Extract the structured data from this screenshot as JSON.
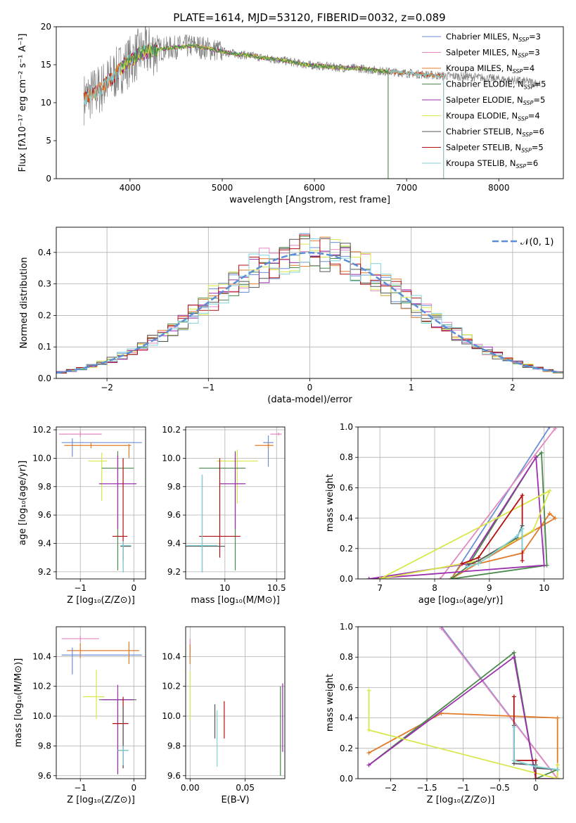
{
  "figure_title": "PLATE=1614, MJD=53120, FIBERID=0032, z=0.089",
  "colors": {
    "Chabrier MILES": "#6b8fd6",
    "Salpeter MILES": "#e688c0",
    "Kroupa MILES": "#e07b2a",
    "Chabrier ELODIE": "#4a8a4a",
    "Salpeter ELODIE": "#9b2fae",
    "Kroupa ELODIE": "#d8e84a",
    "Chabrier STELIB": "#555555",
    "Salpeter STELIB": "#b01010",
    "Kroupa STELIB": "#7fd3d8",
    "data": "#808080"
  },
  "chart_data": [
    {
      "type": "line",
      "title": "PLATE=1614, MJD=53120, FIBERID=0032, z=0.089",
      "xlabel": "wavelength [Angstrom, rest frame]",
      "ylabel": "Flux [fλ10⁻¹⁷ erg cm⁻² s⁻¹ A⁻¹]",
      "xlim": [
        3200,
        8700
      ],
      "ylim": [
        0,
        20
      ],
      "xticks": [
        4000,
        5000,
        6000,
        7000,
        8000
      ],
      "yticks": [
        0,
        5,
        10,
        15,
        20
      ],
      "legend_position": "upper right",
      "legend": [
        {
          "label": "Chabrier MILES, N",
          "sub": "SSP",
          "suffix": "=3",
          "color_key": "Chabrier MILES"
        },
        {
          "label": "Salpeter MILES, N",
          "sub": "SSP",
          "suffix": "=3",
          "color_key": "Salpeter MILES"
        },
        {
          "label": "Kroupa MILES, N",
          "sub": "SSP",
          "suffix": "=4",
          "color_key": "Kroupa MILES"
        },
        {
          "label": "Chabrier ELODIE, N",
          "sub": "SSP",
          "suffix": "=5",
          "color_key": "Chabrier ELODIE"
        },
        {
          "label": "Salpeter ELODIE, N",
          "sub": "SSP",
          "suffix": "=5",
          "color_key": "Salpeter ELODIE"
        },
        {
          "label": "Kroupa ELODIE, N",
          "sub": "SSP",
          "suffix": "=4",
          "color_key": "Kroupa ELODIE"
        },
        {
          "label": "Chabrier STELIB, N",
          "sub": "SSP",
          "suffix": "=6",
          "color_key": "Chabrier STELIB"
        },
        {
          "label": "Salpeter STELIB, N",
          "sub": "SSP",
          "suffix": "=5",
          "color_key": "Salpeter STELIB"
        },
        {
          "label": "Kroupa STELIB, N",
          "sub": "SSP",
          "suffix": "=6",
          "color_key": "Kroupa STELIB"
        }
      ],
      "spectrum_continuum": {
        "x": [
          3500,
          3700,
          3900,
          4100,
          4300,
          4500,
          4700,
          4900,
          5100,
          5300,
          5500,
          5700,
          5900,
          6100,
          6300,
          6500,
          6700,
          6900,
          7100,
          7300,
          7500,
          7700,
          7900,
          8100,
          8300,
          8450
        ],
        "y": [
          10.5,
          12.0,
          14.5,
          16.5,
          17.0,
          17.3,
          17.5,
          17.0,
          16.5,
          16.2,
          15.8,
          15.5,
          15.0,
          14.8,
          14.6,
          14.5,
          14.2,
          14.0,
          13.8,
          13.6,
          13.5,
          13.4,
          13.2,
          13.0,
          12.8,
          12.5
        ]
      },
      "model_ranges": [
        {
          "series": "Salpeter STELIB",
          "x": [
            3500,
            7400
          ]
        },
        {
          "series": "Kroupa MILES",
          "x": [
            3500,
            7400
          ]
        },
        {
          "series": "Kroupa STELIB",
          "x": [
            3500,
            7400
          ]
        },
        {
          "series": "Salpeter ELODIE",
          "x": [
            3900,
            6800
          ]
        },
        {
          "series": "Kroupa ELODIE",
          "x": [
            3900,
            6800
          ]
        },
        {
          "series": "Chabrier ELODIE",
          "x": [
            3900,
            6800
          ]
        }
      ]
    },
    {
      "type": "histogram",
      "xlabel": "(data-model)/error",
      "ylabel": "Normed distribution",
      "xlim": [
        -2.5,
        2.5
      ],
      "ylim": [
        0,
        0.48
      ],
      "xticks": [
        -2,
        -1,
        0,
        1,
        2
      ],
      "yticks": [
        0.0,
        0.1,
        0.2,
        0.3,
        0.4
      ],
      "legend_position": "upper right",
      "legend": [
        {
          "label": "𝒩(0, 1)",
          "color": "#5b8ed6"
        }
      ],
      "bin_width": 0.1,
      "series_shape": "gaussian mean 0, sigma 1 with sampling noise",
      "grid": true
    },
    {
      "type": "errorbar",
      "xlabel": "Z [log₁₀(Z/Z⊙)]",
      "ylabel": "age  [log₁₀(age/yr)]",
      "xlim": [
        -1.45,
        0.22
      ],
      "ylim": [
        9.15,
        10.22
      ],
      "xticks": [
        -1,
        0
      ],
      "yticks": [
        9.2,
        9.4,
        9.6,
        9.8,
        10.0,
        10.2
      ],
      "grid": true,
      "points": [
        {
          "s": "Salpeter MILES",
          "x": -1.0,
          "xe": [
            0.4,
            0.4
          ],
          "y": 10.17,
          "ye": [
            0.02,
            0.02
          ]
        },
        {
          "s": "Chabrier MILES",
          "x": -1.15,
          "xe": [
            0.2,
            1.3
          ],
          "y": 10.11,
          "ye": [
            0.1,
            0.03
          ]
        },
        {
          "s": "Kroupa MILES",
          "x": -0.8,
          "xe": [
            0.5,
            0.75
          ],
          "y": 10.09,
          "ye": [
            0.02,
            0.02
          ]
        },
        {
          "s": "Kroupa MILES",
          "x": -0.09,
          "xe": [
            0,
            0
          ],
          "y": 10.05,
          "ye": [
            0.05,
            0.05
          ]
        },
        {
          "s": "Kroupa ELODIE",
          "x": -0.6,
          "xe": [
            0.25,
            0.1
          ],
          "y": 9.98,
          "ye": [
            0.28,
            0.06
          ]
        },
        {
          "s": "Chabrier ELODIE",
          "x": -0.3,
          "xe": [
            0.3,
            0.3
          ],
          "y": 9.93,
          "ye": [
            0.72,
            0.12
          ]
        },
        {
          "s": "Salpeter ELODIE",
          "x": -0.3,
          "xe": [
            0.35,
            0.35
          ],
          "y": 9.82,
          "ye": [
            0.32,
            0.2
          ]
        },
        {
          "s": "Salpeter STELIB",
          "x": -0.2,
          "xe": [
            0.2,
            0.08
          ],
          "y": 9.45,
          "ye": [
            0.17,
            0.55
          ]
        },
        {
          "s": "Chabrier STELIB",
          "x": -0.2,
          "xe": [
            0.05,
            0.15
          ],
          "y": 9.38,
          "ye": [
            0.18,
            0.03
          ]
        },
        {
          "s": "Kroupa STELIB",
          "x": -0.2,
          "xe": [
            0.05,
            0.15
          ],
          "y": 9.385,
          "ye": [
            0.19,
            0.03
          ]
        }
      ]
    },
    {
      "type": "errorbar",
      "xlabel": "mass [log₁₀(M/M⊙)]",
      "ylabel": "",
      "xlim": [
        9.62,
        10.58
      ],
      "ylim": [
        9.15,
        10.22
      ],
      "xticks": [
        10.0,
        10.5
      ],
      "yticks": [
        9.2,
        9.4,
        9.6,
        9.8,
        10.0,
        10.2
      ],
      "grid": true,
      "points": [
        {
          "s": "Salpeter MILES",
          "x": 10.52,
          "xe": [
            0.08,
            0.03
          ],
          "y": 10.17,
          "ye": [
            0.01,
            0.01
          ]
        },
        {
          "s": "Chabrier MILES",
          "x": 10.42,
          "xe": [
            0.05,
            0.05
          ],
          "y": 10.11,
          "ye": [
            0.17,
            0.05
          ]
        },
        {
          "s": "Kroupa MILES",
          "x": 10.42,
          "xe": [
            0.13,
            0.05
          ],
          "y": 10.09,
          "ye": [
            0.02,
            0.02
          ]
        },
        {
          "s": "Kroupa ELODIE",
          "x": 10.12,
          "xe": [
            0.2,
            0.2
          ],
          "y": 9.98,
          "ye": [
            0.3,
            0.08
          ]
        },
        {
          "s": "Chabrier ELODIE",
          "x": 10.1,
          "xe": [
            0.35,
            0.1
          ],
          "y": 9.93,
          "ye": [
            0.72,
            0.12
          ]
        },
        {
          "s": "Salpeter ELODIE",
          "x": 10.1,
          "xe": [
            0.15,
            0.1
          ],
          "y": 9.82,
          "ye": [
            0.32,
            0.22
          ]
        },
        {
          "s": "Salpeter STELIB",
          "x": 9.95,
          "xe": [
            0.2,
            0.2
          ],
          "y": 9.45,
          "ye": [
            0.15,
            0.55
          ]
        },
        {
          "s": "Chabrier STELIB",
          "x": 9.78,
          "xe": [
            0.22,
            0.22
          ],
          "y": 9.38,
          "ye": [
            0.18,
            0.5
          ]
        },
        {
          "s": "Kroupa STELIB",
          "x": 9.78,
          "xe": [
            0.15,
            0.15
          ],
          "y": 9.385,
          "ye": [
            0.19,
            0.5
          ]
        }
      ]
    },
    {
      "type": "line",
      "xlabel": "age  [log₁₀(age/yr)]",
      "ylabel": "mass weight",
      "xlim": [
        6.6,
        10.35
      ],
      "ylim": [
        0,
        1
      ],
      "xticks": [
        7,
        8,
        9,
        10
      ],
      "yticks": [
        0.0,
        0.2,
        0.4,
        0.6,
        0.8,
        1.0
      ],
      "grid": true,
      "series": [
        {
          "s": "Chabrier MILES",
          "x": [
            8.3,
            10.1
          ],
          "y": [
            0.0,
            1.0
          ]
        },
        {
          "s": "Salpeter MILES",
          "x": [
            8.1,
            10.2
          ],
          "y": [
            0.0,
            0.99
          ]
        },
        {
          "s": "Kroupa MILES",
          "x": [
            8.3,
            8.5,
            8.8,
            9.6,
            10.1,
            10.2,
            8.3
          ],
          "y": [
            0.0,
            0.1,
            0.1,
            0.17,
            0.43,
            0.4,
            0.0
          ]
        },
        {
          "s": "Chabrier ELODIE",
          "x": [
            8.3,
            8.6,
            9.85,
            9.95,
            10.05,
            8.3
          ],
          "y": [
            0.0,
            0.08,
            0.8,
            0.83,
            0.09,
            0.0
          ]
        },
        {
          "s": "Salpeter ELODIE",
          "x": [
            6.8,
            8.6,
            9.85,
            9.85,
            10.0,
            6.8
          ],
          "y": [
            0.0,
            0.1,
            0.8,
            0.8,
            0.09,
            0.0
          ]
        },
        {
          "s": "Kroupa ELODIE",
          "x": [
            7.0,
            8.8,
            9.8,
            10.1,
            7.0
          ],
          "y": [
            0.0,
            0.12,
            0.32,
            0.58,
            0.0
          ]
        },
        {
          "s": "Salpeter STELIB",
          "x": [
            8.5,
            8.8,
            9.6,
            9.6
          ],
          "y": [
            0.1,
            0.14,
            0.55,
            0.12
          ]
        },
        {
          "s": "Chabrier STELIB",
          "x": [
            8.6,
            8.8,
            9.5,
            9.6
          ],
          "y": [
            0.09,
            0.12,
            0.27,
            0.35
          ]
        },
        {
          "s": "Kroupa STELIB",
          "x": [
            8.6,
            8.8,
            9.5,
            9.6,
            9.6
          ],
          "y": [
            0.08,
            0.1,
            0.28,
            0.33,
            0.2
          ]
        }
      ]
    },
    {
      "type": "errorbar",
      "xlabel": "Z [log₁₀(Z/Z⊙)]",
      "ylabel": "mass [log₁₀(M/M⊙)]",
      "xlim": [
        -1.45,
        0.22
      ],
      "ylim": [
        9.58,
        10.6
      ],
      "xticks": [
        -1,
        0
      ],
      "yticks": [
        9.6,
        9.8,
        10.0,
        10.2,
        10.4
      ],
      "grid": true,
      "points": [
        {
          "s": "Salpeter MILES",
          "x": -1.0,
          "xe": [
            0.35,
            0.35
          ],
          "y": 10.52,
          "ye": [
            0.02,
            0.02
          ]
        },
        {
          "s": "Kroupa MILES",
          "x": -1.0,
          "xe": [
            0.25,
            1.1
          ],
          "y": 10.44,
          "ye": [
            0.05,
            0.05
          ]
        },
        {
          "s": "Chabrier MILES",
          "x": -1.15,
          "xe": [
            0.2,
            1.3
          ],
          "y": 10.41,
          "ye": [
            0.13,
            0.05
          ]
        },
        {
          "s": "Kroupa MILES",
          "x": -0.09,
          "xe": [
            0,
            0
          ],
          "y": 10.43,
          "ye": [
            0.08,
            0.07
          ]
        },
        {
          "s": "Kroupa ELODIE",
          "x": -0.7,
          "xe": [
            0.25,
            0.15
          ],
          "y": 10.13,
          "ye": [
            0.15,
            0.18
          ]
        },
        {
          "s": "Chabrier ELODIE",
          "x": -0.3,
          "xe": [
            0.35,
            0.35
          ],
          "y": 10.11,
          "ye": [
            0.5,
            0.0
          ]
        },
        {
          "s": "Salpeter ELODIE",
          "x": -0.3,
          "xe": [
            0.3,
            0.3
          ],
          "y": 10.11,
          "ye": [
            0.5,
            0.1
          ]
        },
        {
          "s": "Salpeter STELIB",
          "x": -0.2,
          "xe": [
            0.2,
            0.1
          ],
          "y": 9.95,
          "ye": [
            0.3,
            0.18
          ]
        },
        {
          "s": "Chabrier STELIB",
          "x": -0.2,
          "xe": [
            0.1,
            0.1
          ],
          "y": 9.77,
          "ye": [
            0.12,
            0.3
          ]
        },
        {
          "s": "Kroupa STELIB",
          "x": -0.2,
          "xe": [
            0.1,
            0.1
          ],
          "y": 9.77,
          "ye": [
            0.1,
            0.03
          ]
        }
      ]
    },
    {
      "type": "errorbar",
      "xlabel": "E(B-V)",
      "ylabel": "",
      "xlim": [
        -0.004,
        0.086
      ],
      "ylim": [
        9.58,
        10.6
      ],
      "xticks": [
        0.0,
        0.05
      ],
      "xticklabels": [
        "0.00",
        "0.05"
      ],
      "yticks": [
        9.6,
        9.8,
        10.0,
        10.2,
        10.4
      ],
      "grid": true,
      "points": [
        {
          "s": "Salpeter MILES",
          "x": 0.0,
          "y": 10.45,
          "ye": [
            0.05,
            0.07
          ]
        },
        {
          "s": "Kroupa MILES",
          "x": 0.0,
          "y": 10.4,
          "ye": [
            0.05,
            0.08
          ]
        },
        {
          "s": "Kroupa ELODIE",
          "x": 0.0,
          "y": 10.15,
          "ye": [
            0.18,
            0.15
          ]
        },
        {
          "s": "Chabrier STELIB",
          "x": 0.0225,
          "y": 9.95,
          "ye": [
            0.1,
            0.13
          ]
        },
        {
          "s": "Kroupa STELIB",
          "x": 0.0245,
          "y": 9.86,
          "ye": [
            0.2,
            0.18
          ]
        },
        {
          "s": "Salpeter STELIB",
          "x": 0.031,
          "y": 9.95,
          "ye": [
            0.1,
            0.15
          ]
        },
        {
          "s": "Chabrier ELODIE",
          "x": 0.082,
          "y": 9.9,
          "ye": [
            0.3,
            0.3
          ]
        },
        {
          "s": "Salpeter ELODIE",
          "x": 0.084,
          "y": 9.98,
          "ye": [
            0.22,
            0.24
          ]
        }
      ]
    },
    {
      "type": "line",
      "xlabel": "Z [log₁₀(Z/Z⊙)]",
      "ylabel": "mass weight",
      "xlim": [
        -2.45,
        0.38
      ],
      "ylim": [
        0,
        1
      ],
      "xticks": [
        -2.0,
        -1.5,
        -1.0,
        -0.5,
        0.0
      ],
      "yticks": [
        0.0,
        0.2,
        0.4,
        0.6,
        0.8,
        1.0
      ],
      "grid": true,
      "series": [
        {
          "s": "Chabrier MILES",
          "x": [
            -1.3,
            0.3
          ],
          "y": [
            1.0,
            0.0
          ]
        },
        {
          "s": "Salpeter MILES",
          "x": [
            -1.3,
            0.3
          ],
          "y": [
            0.99,
            0.0
          ]
        },
        {
          "s": "Kroupa MILES",
          "x": [
            -2.3,
            -1.3,
            0.3,
            0.3
          ],
          "y": [
            0.17,
            0.43,
            0.4,
            0.0
          ]
        },
        {
          "s": "Chabrier ELODIE",
          "x": [
            -2.3,
            -0.3,
            0.0,
            0.3
          ],
          "y": [
            0.09,
            0.83,
            0.0,
            0.06
          ]
        },
        {
          "s": "Salpeter ELODIE",
          "x": [
            -2.3,
            -0.3,
            0.0,
            0.3
          ],
          "y": [
            0.09,
            0.8,
            0.0,
            0.0
          ]
        },
        {
          "s": "Kroupa ELODIE",
          "x": [
            -2.3,
            -2.3,
            0.3,
            0.3
          ],
          "y": [
            0.58,
            0.32,
            0.0,
            0.09
          ]
        },
        {
          "s": "Salpeter STELIB",
          "x": [
            -0.3,
            -0.3,
            0.0,
            0.0
          ],
          "y": [
            0.54,
            0.12,
            0.12,
            0.0
          ]
        },
        {
          "s": "Chabrier STELIB",
          "x": [
            -0.3,
            -0.3,
            0.0,
            0.0,
            0.3
          ],
          "y": [
            0.35,
            0.1,
            0.09,
            0.07,
            0.06
          ]
        },
        {
          "s": "Kroupa STELIB",
          "x": [
            -0.3,
            -0.3,
            0.0,
            0.3
          ],
          "y": [
            0.34,
            0.12,
            0.08,
            0.06
          ]
        }
      ]
    }
  ]
}
